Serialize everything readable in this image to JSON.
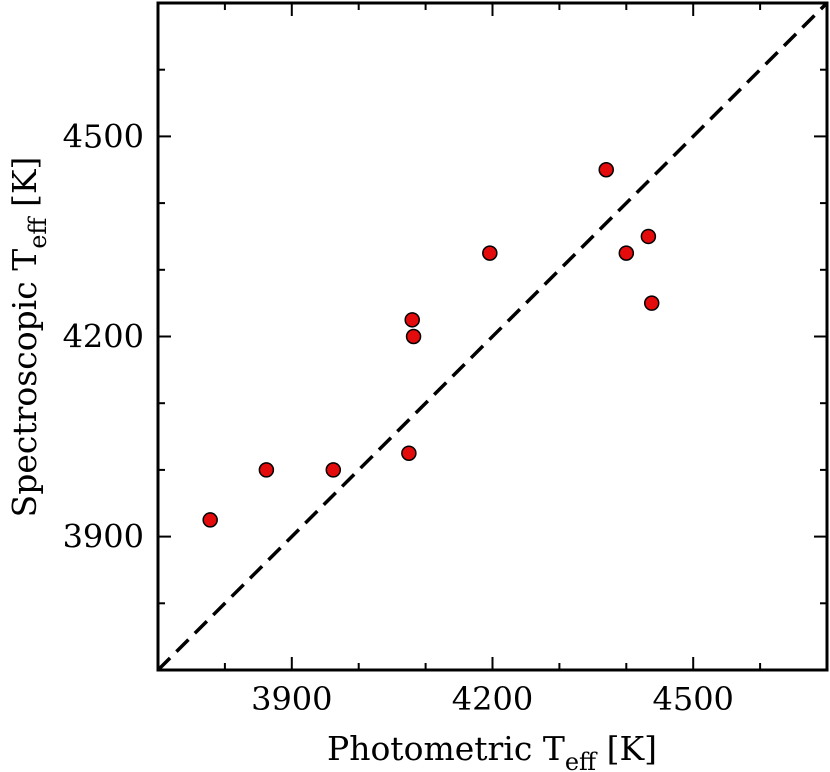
{
  "chart_data": {
    "type": "scatter",
    "xlabel": "Photometric T",
    "xlabel_sub": "eff",
    "xlabel_unit": " [K]",
    "ylabel": "Spectroscopic T",
    "ylabel_sub": "eff",
    "ylabel_unit": " [K]",
    "xlim": [
      3700,
      4700
    ],
    "ylim": [
      3700,
      4700
    ],
    "xticks": [
      3900,
      4200,
      4500
    ],
    "yticks": [
      3900,
      4200,
      4500
    ],
    "minor_tick_step": 100,
    "reference_line": {
      "style": "dashed",
      "from": [
        3700,
        3700
      ],
      "to": [
        4700,
        4700
      ],
      "color": "#000000"
    },
    "marker_color": "#e30b0b",
    "marker_edge": "#000000",
    "points": [
      {
        "x": 3778,
        "y": 3925
      },
      {
        "x": 3862,
        "y": 4000
      },
      {
        "x": 3962,
        "y": 4000
      },
      {
        "x": 4075,
        "y": 4025
      },
      {
        "x": 4080,
        "y": 4225
      },
      {
        "x": 4082,
        "y": 4200
      },
      {
        "x": 4196,
        "y": 4325
      },
      {
        "x": 4370,
        "y": 4450
      },
      {
        "x": 4400,
        "y": 4325
      },
      {
        "x": 4433,
        "y": 4350
      },
      {
        "x": 4438,
        "y": 4250
      }
    ]
  }
}
